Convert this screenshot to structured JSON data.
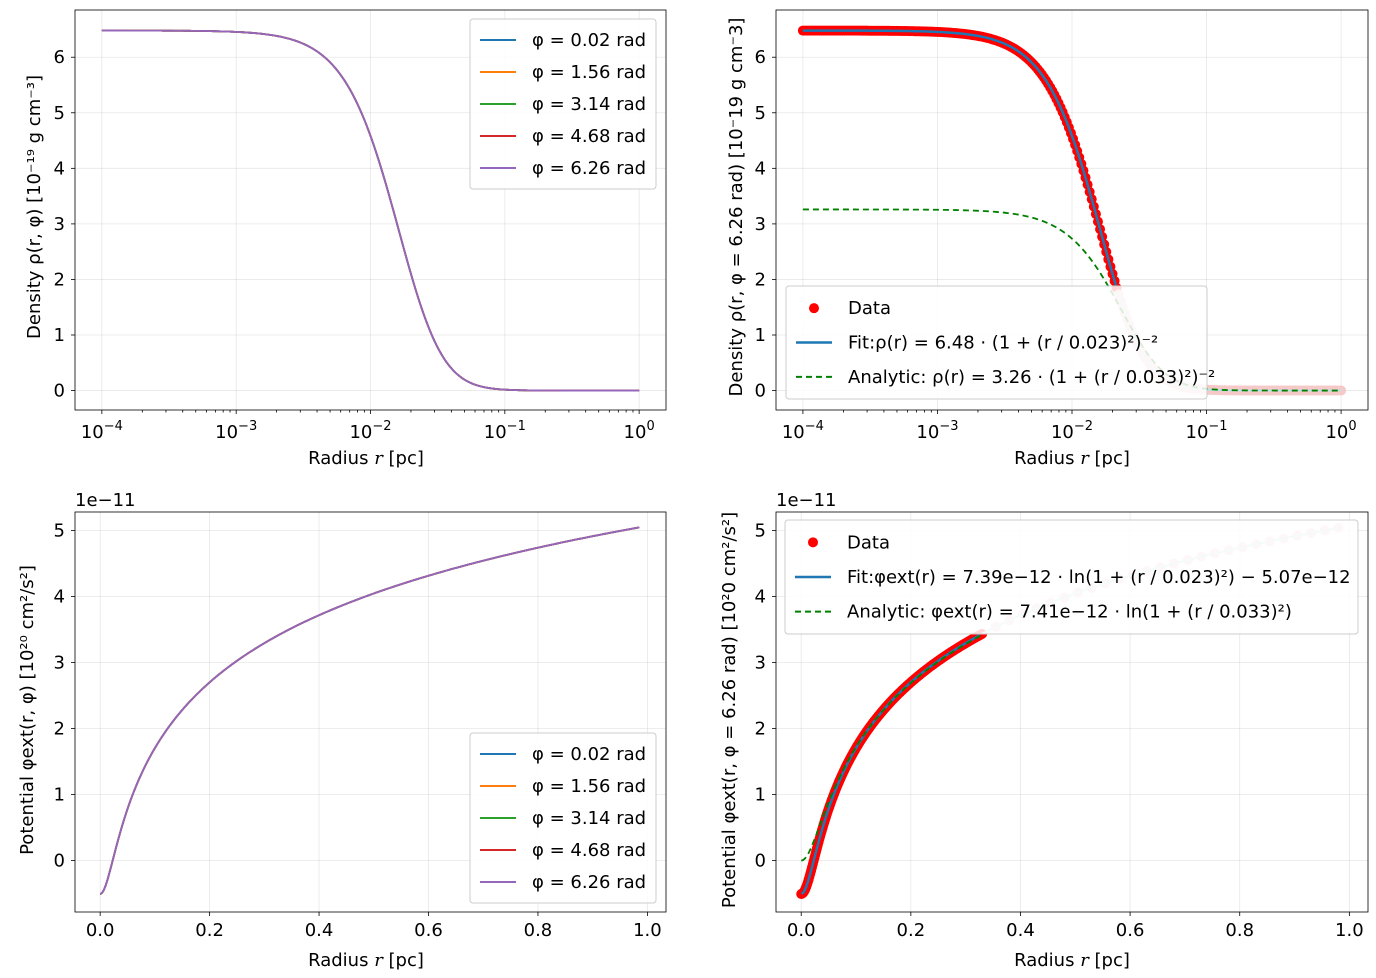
{
  "chart_data": [
    {
      "id": "p1",
      "type": "line",
      "xscale": "log",
      "xlim": [
        0.0001,
        1
      ],
      "ylim": [
        -0.35,
        6.85
      ],
      "xticks": [
        0.0001,
        0.001,
        0.01,
        0.1,
        1
      ],
      "xtick_labels": [
        [
          "10",
          "−4"
        ],
        [
          "10",
          "−3"
        ],
        [
          "10",
          "−2"
        ],
        [
          "10",
          "−1"
        ],
        [
          "10",
          "0"
        ]
      ],
      "yticks": [
        0,
        1,
        2,
        3,
        4,
        5,
        6
      ],
      "ytick_labels": [
        "0",
        "1",
        "2",
        "3",
        "4",
        "5",
        "6"
      ],
      "xlabel": {
        "pre": "Radius ",
        "var": "r",
        "post": " [pc]"
      },
      "ylabel": "Density ρ(r, φ) [10⁻¹⁹ g cm⁻³]",
      "offset_text": "",
      "legend_location": "upper right",
      "model": {
        "kind": "density",
        "amplitude": 6.48,
        "r0": 0.023
      },
      "series": [
        {
          "name": "φ = 0.02 rad",
          "color": "#1f77b4"
        },
        {
          "name": "φ = 1.56 rad",
          "color": "#ff7f0e"
        },
        {
          "name": "φ = 3.14 rad",
          "color": "#2ca02c"
        },
        {
          "name": "φ = 4.68 rad",
          "color": "#d62728"
        },
        {
          "name": "φ = 6.26 rad",
          "color": "#9467bd"
        }
      ]
    },
    {
      "id": "p2",
      "type": "scatter",
      "xscale": "log",
      "xlim": [
        0.0001,
        1
      ],
      "ylim": [
        -0.35,
        6.85
      ],
      "xticks": [
        0.0001,
        0.001,
        0.01,
        0.1,
        1
      ],
      "xtick_labels": [
        [
          "10",
          "−4"
        ],
        [
          "10",
          "−3"
        ],
        [
          "10",
          "−2"
        ],
        [
          "10",
          "−1"
        ],
        [
          "10",
          "0"
        ]
      ],
      "yticks": [
        0,
        1,
        2,
        3,
        4,
        5,
        6
      ],
      "ytick_labels": [
        "0",
        "1",
        "2",
        "3",
        "4",
        "5",
        "6"
      ],
      "xlabel": {
        "pre": "Radius ",
        "var": "r",
        "post": " [pc]"
      },
      "ylabel": "Density ρ(r, φ = 6.26 rad) [10⁻19 g cm⁻3]",
      "offset_text": "",
      "legend_location": "lower left",
      "data": {
        "name": "Data",
        "color": "#ff0000",
        "fade_color": "#f6c9c9",
        "fade_after": 0.022,
        "model": {
          "kind": "density",
          "amplitude": 6.48,
          "r0": 0.023
        }
      },
      "fit": {
        "name": "Fit:ρ(r) = 6.48 · (1 + (r / 0.023)²)⁻²",
        "color": "#1f77b4",
        "xmax": 0.022,
        "model": {
          "kind": "density",
          "amplitude": 6.48,
          "r0": 0.023
        }
      },
      "analytic": {
        "name": "Analytic: ρ(r) = 3.26 · (1 + (r / 0.033)²)⁻²",
        "color": "#008000",
        "model": {
          "kind": "density",
          "amplitude": 3.26,
          "r0": 0.033
        }
      }
    },
    {
      "id": "p3",
      "type": "line",
      "xscale": "linear",
      "xlim": [
        -0.046,
        1.034
      ],
      "ylim": [
        -0.78,
        5.28
      ],
      "xticks": [
        0,
        0.2,
        0.4,
        0.6,
        0.8,
        1.0
      ],
      "xtick_labels": [
        "0.0",
        "0.2",
        "0.4",
        "0.6",
        "0.8",
        "1.0"
      ],
      "yticks": [
        0,
        1,
        2,
        3,
        4,
        5
      ],
      "ytick_labels": [
        "0",
        "1",
        "2",
        "3",
        "4",
        "5"
      ],
      "xlabel": {
        "pre": "Radius ",
        "var": "r",
        "post": " [pc]"
      },
      "ylabel": "Potential φext(r, φ) [10²⁰ cm²/s²]",
      "offset_text": "1e−11",
      "legend_location": "lower right",
      "model": {
        "kind": "potential",
        "amplitude": 7.39,
        "r0": 0.023,
        "shift": -5.07
      },
      "series": [
        {
          "name": "φ = 0.02 rad",
          "color": "#1f77b4"
        },
        {
          "name": "φ = 1.56 rad",
          "color": "#ff7f0e"
        },
        {
          "name": "φ = 3.14 rad",
          "color": "#2ca02c"
        },
        {
          "name": "φ = 4.68 rad",
          "color": "#d62728"
        },
        {
          "name": "φ = 6.26 rad",
          "color": "#9467bd"
        }
      ]
    },
    {
      "id": "p4",
      "type": "scatter",
      "xscale": "linear",
      "xlim": [
        -0.046,
        1.034
      ],
      "ylim": [
        -0.78,
        5.28
      ],
      "xticks": [
        0,
        0.2,
        0.4,
        0.6,
        0.8,
        1.0
      ],
      "xtick_labels": [
        "0.0",
        "0.2",
        "0.4",
        "0.6",
        "0.8",
        "1.0"
      ],
      "yticks": [
        0,
        1,
        2,
        3,
        4,
        5
      ],
      "ytick_labels": [
        "0",
        "1",
        "2",
        "3",
        "4",
        "5"
      ],
      "xlabel": {
        "pre": "Radius ",
        "var": "r",
        "post": " [pc]"
      },
      "ylabel": "Potential φext(r, φ = 6.26 rad) [10²0 cm²/s²]",
      "offset_text": "1e−11",
      "legend_location": "upper left",
      "data": {
        "name": "Data",
        "color": "#ff0000",
        "fade_color": "#f6c9c9",
        "fade_after": 0.33,
        "model": {
          "kind": "potential",
          "amplitude": 7.39,
          "r0": 0.023,
          "shift": -5.07
        }
      },
      "fit": {
        "name": "Fit:φext(r) = 7.39e−12 · ln(1 + (r / 0.023)²) − 5.07e−12",
        "color": "#1f77b4",
        "xmax": 0.33,
        "model": {
          "kind": "potential",
          "amplitude": 7.39,
          "r0": 0.023,
          "shift": -5.07
        }
      },
      "analytic": {
        "name": "Analytic: φext(r) = 7.41e−12 · ln(1 + (r / 0.033)²)",
        "color": "#008000",
        "model": {
          "kind": "potential",
          "amplitude": 7.41,
          "r0": 0.033,
          "shift": 0
        }
      }
    }
  ]
}
